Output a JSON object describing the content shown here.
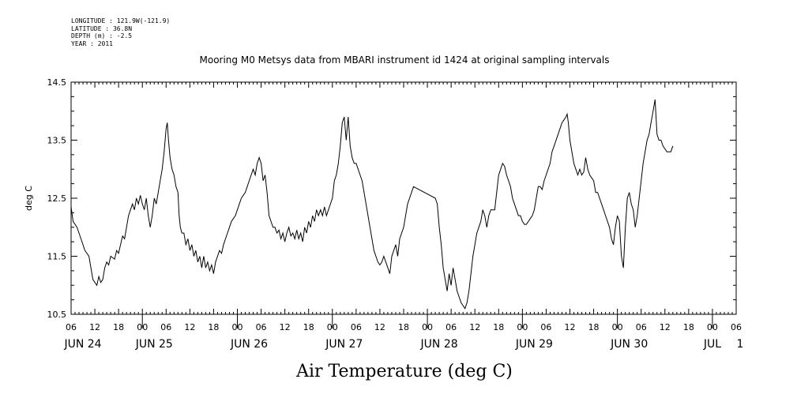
{
  "meta": {
    "longitude": "LONGITUDE : 121.9W(-121.9)",
    "latitude": "LATITUDE : 36.8N",
    "depth": "DEPTH (m) : -2.5",
    "year": "YEAR : 2011"
  },
  "chart_data": {
    "type": "line",
    "title": "Mooring M0 Metsys data from MBARI instrument id 1424 at original sampling intervals",
    "ylabel": "deg C",
    "footer": "Air Temperature (deg C)",
    "xlim_hours": [
      0,
      168
    ],
    "ylim": [
      10.5,
      14.5
    ],
    "y_ticks": [
      10.5,
      11.5,
      12.5,
      13.5,
      14.5
    ],
    "y_tick_labels": [
      "10.5",
      "11.5",
      "12.5",
      "13.5",
      "14.5"
    ],
    "x_hour_tick_labels": [
      "06",
      "12",
      "18",
      "00",
      "06",
      "12",
      "18",
      "00",
      "06",
      "12",
      "18",
      "00",
      "06",
      "12",
      "18",
      "00",
      "06",
      "12",
      "18",
      "00",
      "06",
      "12",
      "18",
      "00",
      "06",
      "12",
      "18",
      "00",
      "06"
    ],
    "date_labels": [
      {
        "text": "JUN 24",
        "hour": 3
      },
      {
        "text": "JUN 25",
        "hour": 21
      },
      {
        "text": "JUN 26",
        "hour": 45
      },
      {
        "text": "JUN 27",
        "hour": 69
      },
      {
        "text": "JUN 28",
        "hour": 93
      },
      {
        "text": "JUN 29",
        "hour": 117
      },
      {
        "text": "JUN 30",
        "hour": 141
      },
      {
        "text": "JUL",
        "hour": 162
      },
      {
        "text": "1",
        "hour": 169
      }
    ],
    "series": [
      {
        "color": "#000000",
        "points": [
          [
            0.0,
            12.35
          ],
          [
            0.5,
            12.1
          ],
          [
            1.5,
            12.0
          ],
          [
            2.5,
            11.8
          ],
          [
            3.5,
            11.6
          ],
          [
            4.5,
            11.5
          ],
          [
            5.0,
            11.3
          ],
          [
            5.5,
            11.1
          ],
          [
            6.0,
            11.05
          ],
          [
            6.5,
            11.0
          ],
          [
            7.0,
            11.15
          ],
          [
            7.5,
            11.05
          ],
          [
            8.0,
            11.1
          ],
          [
            8.5,
            11.3
          ],
          [
            9.0,
            11.4
          ],
          [
            9.5,
            11.35
          ],
          [
            10.0,
            11.5
          ],
          [
            11.0,
            11.45
          ],
          [
            11.5,
            11.6
          ],
          [
            12.0,
            11.55
          ],
          [
            12.5,
            11.7
          ],
          [
            13.0,
            11.85
          ],
          [
            13.5,
            11.8
          ],
          [
            14.0,
            12.0
          ],
          [
            14.5,
            12.2
          ],
          [
            15.0,
            12.3
          ],
          [
            15.5,
            12.4
          ],
          [
            16.0,
            12.3
          ],
          [
            16.5,
            12.5
          ],
          [
            17.0,
            12.4
          ],
          [
            17.5,
            12.55
          ],
          [
            18.0,
            12.4
          ],
          [
            18.5,
            12.3
          ],
          [
            19.0,
            12.5
          ],
          [
            19.5,
            12.2
          ],
          [
            20.0,
            12.0
          ],
          [
            20.5,
            12.2
          ],
          [
            21.0,
            12.5
          ],
          [
            21.5,
            12.4
          ],
          [
            22.0,
            12.6
          ],
          [
            22.5,
            12.8
          ],
          [
            23.0,
            13.0
          ],
          [
            23.5,
            13.3
          ],
          [
            24.0,
            13.7
          ],
          [
            24.3,
            13.8
          ],
          [
            24.6,
            13.5
          ],
          [
            25.0,
            13.2
          ],
          [
            25.5,
            13.0
          ],
          [
            26.0,
            12.9
          ],
          [
            26.5,
            12.7
          ],
          [
            27.0,
            12.6
          ],
          [
            27.3,
            12.2
          ],
          [
            27.6,
            12.0
          ],
          [
            28.0,
            11.9
          ],
          [
            28.5,
            11.9
          ],
          [
            29.0,
            11.7
          ],
          [
            29.5,
            11.8
          ],
          [
            30.0,
            11.6
          ],
          [
            30.5,
            11.7
          ],
          [
            31.0,
            11.5
          ],
          [
            31.5,
            11.6
          ],
          [
            32.0,
            11.4
          ],
          [
            32.5,
            11.5
          ],
          [
            33.0,
            11.3
          ],
          [
            33.5,
            11.5
          ],
          [
            34.0,
            11.3
          ],
          [
            34.5,
            11.4
          ],
          [
            35.0,
            11.25
          ],
          [
            35.5,
            11.35
          ],
          [
            36.0,
            11.2
          ],
          [
            36.5,
            11.4
          ],
          [
            37.0,
            11.5
          ],
          [
            37.5,
            11.6
          ],
          [
            38.0,
            11.55
          ],
          [
            38.5,
            11.7
          ],
          [
            39.0,
            11.8
          ],
          [
            39.5,
            11.9
          ],
          [
            40.0,
            12.0
          ],
          [
            40.5,
            12.1
          ],
          [
            41.0,
            12.15
          ],
          [
            41.5,
            12.2
          ],
          [
            42.0,
            12.3
          ],
          [
            42.5,
            12.4
          ],
          [
            43.0,
            12.5
          ],
          [
            43.5,
            12.55
          ],
          [
            44.0,
            12.6
          ],
          [
            44.5,
            12.7
          ],
          [
            45.0,
            12.8
          ],
          [
            45.5,
            12.9
          ],
          [
            46.0,
            13.0
          ],
          [
            46.5,
            12.9
          ],
          [
            47.0,
            13.1
          ],
          [
            47.5,
            13.2
          ],
          [
            48.0,
            13.1
          ],
          [
            48.5,
            12.8
          ],
          [
            49.0,
            12.9
          ],
          [
            49.5,
            12.6
          ],
          [
            50.0,
            12.2
          ],
          [
            50.5,
            12.1
          ],
          [
            51.0,
            12.0
          ],
          [
            51.5,
            12.0
          ],
          [
            52.0,
            11.9
          ],
          [
            52.5,
            11.95
          ],
          [
            53.0,
            11.8
          ],
          [
            53.5,
            11.9
          ],
          [
            54.0,
            11.75
          ],
          [
            54.5,
            11.9
          ],
          [
            55.0,
            12.0
          ],
          [
            55.5,
            11.85
          ],
          [
            56.0,
            11.9
          ],
          [
            56.5,
            11.8
          ],
          [
            57.0,
            11.95
          ],
          [
            57.5,
            11.8
          ],
          [
            58.0,
            11.9
          ],
          [
            58.5,
            11.75
          ],
          [
            59.0,
            12.0
          ],
          [
            59.5,
            11.9
          ],
          [
            60.0,
            12.1
          ],
          [
            60.5,
            12.0
          ],
          [
            61.0,
            12.2
          ],
          [
            61.5,
            12.1
          ],
          [
            62.0,
            12.3
          ],
          [
            62.5,
            12.2
          ],
          [
            63.0,
            12.3
          ],
          [
            63.5,
            12.2
          ],
          [
            64.0,
            12.35
          ],
          [
            64.5,
            12.2
          ],
          [
            65.0,
            12.3
          ],
          [
            65.5,
            12.4
          ],
          [
            66.0,
            12.5
          ],
          [
            66.5,
            12.8
          ],
          [
            67.0,
            12.9
          ],
          [
            67.5,
            13.1
          ],
          [
            68.0,
            13.4
          ],
          [
            68.5,
            13.8
          ],
          [
            69.0,
            13.9
          ],
          [
            69.5,
            13.5
          ],
          [
            70.0,
            13.9
          ],
          [
            70.5,
            13.4
          ],
          [
            71.0,
            13.2
          ],
          [
            71.5,
            13.1
          ],
          [
            72.0,
            13.1
          ],
          [
            72.5,
            13.0
          ],
          [
            73.0,
            12.9
          ],
          [
            73.5,
            12.8
          ],
          [
            74.0,
            12.6
          ],
          [
            74.5,
            12.4
          ],
          [
            75.0,
            12.2
          ],
          [
            75.5,
            12.0
          ],
          [
            76.0,
            11.8
          ],
          [
            76.5,
            11.6
          ],
          [
            77.0,
            11.5
          ],
          [
            77.5,
            11.4
          ],
          [
            78.0,
            11.35
          ],
          [
            78.5,
            11.4
          ],
          [
            79.0,
            11.5
          ],
          [
            79.5,
            11.4
          ],
          [
            80.0,
            11.3
          ],
          [
            80.5,
            11.2
          ],
          [
            81.0,
            11.5
          ],
          [
            81.5,
            11.6
          ],
          [
            82.0,
            11.7
          ],
          [
            82.5,
            11.5
          ],
          [
            83.0,
            11.8
          ],
          [
            83.5,
            11.9
          ],
          [
            84.0,
            12.0
          ],
          [
            84.5,
            12.2
          ],
          [
            85.0,
            12.4
          ],
          [
            85.5,
            12.5
          ],
          [
            86.0,
            12.6
          ],
          [
            86.5,
            12.7
          ],
          [
            92.0,
            12.5
          ],
          [
            92.5,
            12.4
          ],
          [
            93.0,
            12.0
          ],
          [
            93.5,
            11.7
          ],
          [
            94.0,
            11.3
          ],
          [
            94.5,
            11.1
          ],
          [
            95.0,
            10.9
          ],
          [
            95.5,
            11.2
          ],
          [
            96.0,
            11.0
          ],
          [
            96.5,
            11.3
          ],
          [
            97.0,
            11.1
          ],
          [
            97.5,
            10.9
          ],
          [
            98.0,
            10.8
          ],
          [
            98.5,
            10.7
          ],
          [
            99.0,
            10.65
          ],
          [
            99.5,
            10.6
          ],
          [
            100.0,
            10.7
          ],
          [
            100.5,
            10.9
          ],
          [
            101.0,
            11.2
          ],
          [
            101.5,
            11.5
          ],
          [
            102.0,
            11.7
          ],
          [
            102.5,
            11.9
          ],
          [
            103.0,
            12.0
          ],
          [
            103.5,
            12.1
          ],
          [
            104.0,
            12.3
          ],
          [
            104.5,
            12.2
          ],
          [
            105.0,
            12.0
          ],
          [
            105.5,
            12.2
          ],
          [
            106.0,
            12.3
          ],
          [
            106.5,
            12.3
          ],
          [
            107.0,
            12.3
          ],
          [
            107.5,
            12.6
          ],
          [
            108.0,
            12.9
          ],
          [
            108.5,
            13.0
          ],
          [
            109.0,
            13.1
          ],
          [
            109.5,
            13.05
          ],
          [
            110.0,
            12.9
          ],
          [
            110.5,
            12.8
          ],
          [
            111.0,
            12.7
          ],
          [
            111.5,
            12.5
          ],
          [
            112.0,
            12.4
          ],
          [
            112.5,
            12.3
          ],
          [
            113.0,
            12.2
          ],
          [
            113.5,
            12.2
          ],
          [
            114.0,
            12.1
          ],
          [
            114.5,
            12.05
          ],
          [
            115.0,
            12.05
          ],
          [
            115.5,
            12.1
          ],
          [
            116.0,
            12.15
          ],
          [
            116.5,
            12.2
          ],
          [
            117.0,
            12.3
          ],
          [
            117.5,
            12.5
          ],
          [
            118.0,
            12.7
          ],
          [
            118.5,
            12.7
          ],
          [
            119.0,
            12.65
          ],
          [
            119.5,
            12.8
          ],
          [
            120.0,
            12.9
          ],
          [
            120.5,
            13.0
          ],
          [
            121.0,
            13.1
          ],
          [
            121.5,
            13.3
          ],
          [
            122.0,
            13.4
          ],
          [
            122.5,
            13.5
          ],
          [
            123.0,
            13.6
          ],
          [
            123.5,
            13.7
          ],
          [
            124.0,
            13.8
          ],
          [
            124.5,
            13.85
          ],
          [
            125.0,
            13.9
          ],
          [
            125.3,
            13.95
          ],
          [
            125.6,
            13.8
          ],
          [
            126.0,
            13.5
          ],
          [
            126.5,
            13.3
          ],
          [
            127.0,
            13.1
          ],
          [
            127.5,
            13.0
          ],
          [
            128.0,
            12.9
          ],
          [
            128.5,
            13.0
          ],
          [
            129.0,
            12.9
          ],
          [
            129.5,
            12.95
          ],
          [
            130.0,
            13.2
          ],
          [
            130.5,
            13.0
          ],
          [
            131.0,
            12.9
          ],
          [
            131.5,
            12.85
          ],
          [
            132.0,
            12.8
          ],
          [
            132.5,
            12.6
          ],
          [
            133.0,
            12.6
          ],
          [
            133.5,
            12.5
          ],
          [
            134.0,
            12.4
          ],
          [
            134.5,
            12.3
          ],
          [
            135.0,
            12.2
          ],
          [
            135.5,
            12.1
          ],
          [
            136.0,
            12.0
          ],
          [
            136.5,
            11.8
          ],
          [
            137.0,
            11.7
          ],
          [
            137.5,
            12.0
          ],
          [
            138.0,
            12.2
          ],
          [
            138.5,
            12.1
          ],
          [
            139.0,
            11.5
          ],
          [
            139.5,
            11.3
          ],
          [
            140.0,
            12.0
          ],
          [
            140.5,
            12.5
          ],
          [
            141.0,
            12.6
          ],
          [
            141.5,
            12.4
          ],
          [
            142.0,
            12.3
          ],
          [
            142.5,
            12.0
          ],
          [
            143.0,
            12.2
          ],
          [
            143.5,
            12.5
          ],
          [
            144.0,
            12.8
          ],
          [
            144.5,
            13.1
          ],
          [
            145.0,
            13.3
          ],
          [
            145.5,
            13.5
          ],
          [
            146.0,
            13.6
          ],
          [
            146.5,
            13.8
          ],
          [
            147.0,
            14.0
          ],
          [
            147.5,
            14.2
          ],
          [
            148.0,
            13.6
          ],
          [
            148.5,
            13.5
          ],
          [
            149.0,
            13.5
          ],
          [
            149.5,
            13.4
          ],
          [
            150.0,
            13.35
          ],
          [
            150.5,
            13.3
          ],
          [
            151.0,
            13.3
          ],
          [
            151.5,
            13.3
          ],
          [
            152.0,
            13.4
          ]
        ]
      }
    ]
  }
}
